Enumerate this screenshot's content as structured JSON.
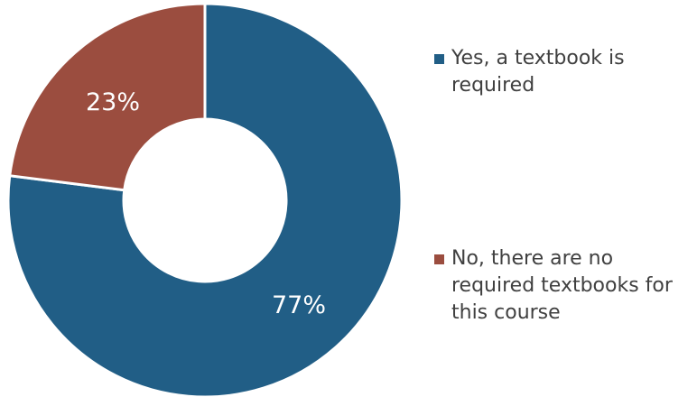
{
  "chart_data": {
    "type": "pie",
    "donut": true,
    "series": [
      {
        "label": "Yes, a textbook is required",
        "value": 77,
        "display": "77%",
        "color": "#215e86"
      },
      {
        "label": "No, there are no required textbooks for this course",
        "value": 23,
        "display": "23%",
        "color": "#9b4d3f"
      }
    ],
    "legend": {
      "position": "right",
      "items": [
        {
          "label": "Yes, a textbook is\nrequired",
          "color": "#215e86"
        },
        {
          "label": "No, there are no\nrequired textbooks for\nthis course",
          "color": "#9b4d3f"
        }
      ]
    },
    "start_angle": "12 o'clock",
    "direction": "clockwise"
  }
}
